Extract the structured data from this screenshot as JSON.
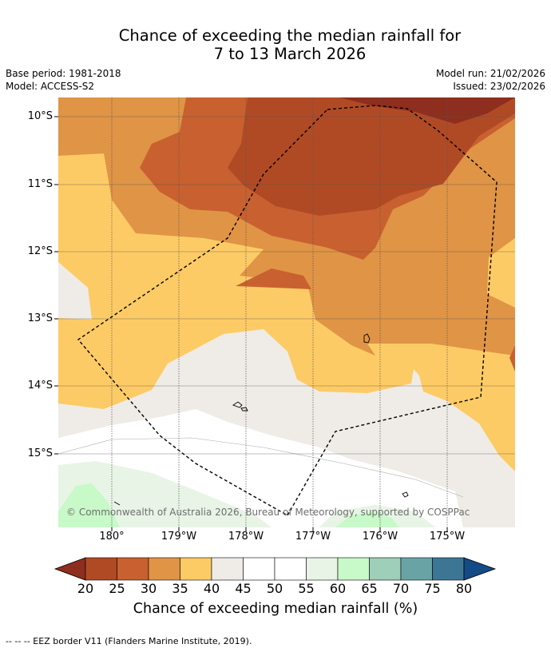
{
  "title": {
    "line1": "Chance of exceeding the median rainfall for",
    "line2": "7 to 13 March 2026"
  },
  "meta": {
    "base_period": "Base period: 1981-2018",
    "model": "Model: ACCESS-S2",
    "model_run": "Model run: 21/02/2026",
    "issued": "Issued: 23/02/2026"
  },
  "map": {
    "lat_labels": [
      "10°S",
      "11°S",
      "12°S",
      "13°S",
      "14°S",
      "15°S"
    ],
    "lon_labels": [
      "180°",
      "179°W",
      "178°W",
      "177°W",
      "176°W",
      "175°W"
    ],
    "copyright": "© Commonwealth of Australia 2026, Bureau of Meteorology, supported by COSPPac"
  },
  "colorbar": {
    "ticks": [
      "20",
      "25",
      "30",
      "35",
      "40",
      "45",
      "50",
      "55",
      "60",
      "65",
      "70",
      "75",
      "80"
    ],
    "colors": [
      "#b04a25",
      "#c8612f",
      "#e09445",
      "#fdcb65",
      "#efece7",
      "#ffffff",
      "#ffffff",
      "#e8f4e6",
      "#c8f9c8",
      "#9ecfb8",
      "#6aa3a5",
      "#3d7595"
    ],
    "under_color": "#8e2e1e",
    "over_color": "#134b86",
    "label": "Chance of exceeding median rainfall (%)"
  },
  "footnote": "--  --  -- EEZ border V11 (Flanders Marine Institute, 2019)."
}
